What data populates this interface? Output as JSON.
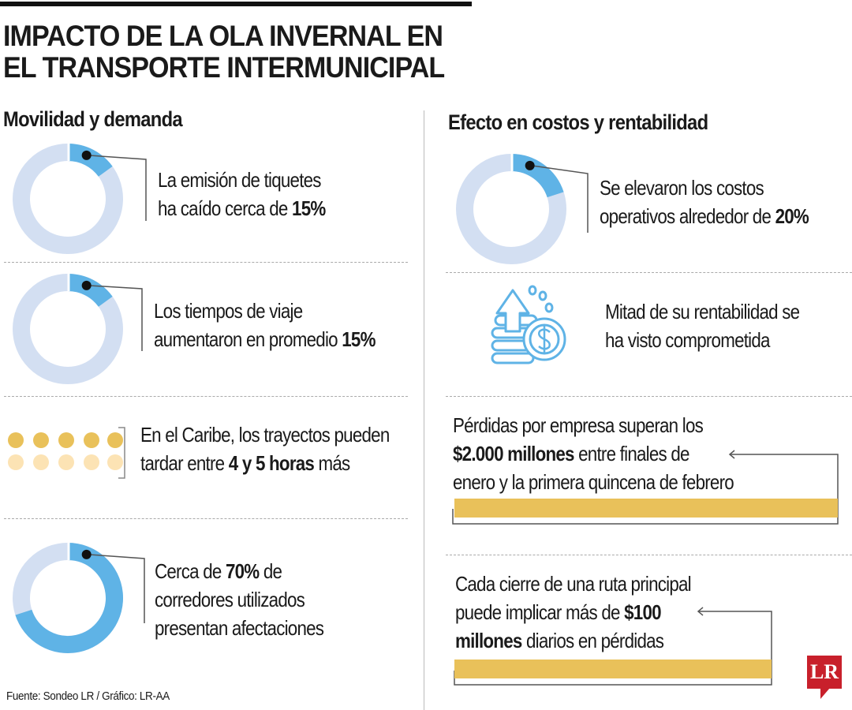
{
  "title_lines": [
    "IMPACTO DE LA OLA INVERNAL EN",
    "EL TRANSPORTE INTERMUNICIPAL"
  ],
  "left": {
    "heading": "Movilidad y demanda",
    "items": [
      {
        "pre": "La emisión de tiquetes",
        "pre2": "ha caído cerca de ",
        "bold": "15%"
      },
      {
        "pre": "Los tiempos de viaje",
        "pre2": "aumentaron en promedio ",
        "bold": "15%"
      },
      {
        "pre": "En el Caribe, los trayectos pueden",
        "pre2": "tardar entre ",
        "bold": "4 y 5 horas",
        "post": " más"
      },
      {
        "pre": "Cerca de ",
        "bold": "70%",
        "post": " de",
        "line2": "corredores utilizados",
        "line3": "presentan afectaciones"
      }
    ]
  },
  "right": {
    "heading": "Efecto en costos y rentabilidad",
    "items": [
      {
        "pre": "Se elevaron los costos",
        "pre2": "operativos alrededor de ",
        "bold": "20%"
      },
      {
        "line1": "Mitad de su rentabilidad se",
        "line2": "ha visto comprometida",
        "icon": "coins-dollar-arrow-up-icon"
      },
      {
        "line1": "Pérdidas por empresa superan los",
        "bold": "$2.000 millones",
        "post": " entre finales de",
        "line3": "enero y la primera quincena de febrero"
      },
      {
        "line1": "Cada cierre de una ruta principal",
        "pre2": "puede implicar más de ",
        "bold": "$100",
        "bold3": "millones",
        "post3": " diarios en pérdidas"
      }
    ]
  },
  "source": "Fuente: Sondeo LR / Gráfico: LR-AA",
  "logo": "LR",
  "colors": {
    "highlight": "#5fb3e6",
    "track": "#d3dff2",
    "gold": "#e9c15a",
    "gold_light": "#fce3b4",
    "logo": "#c8202b"
  },
  "chart_data": {
    "type": "pie",
    "donuts": [
      {
        "value": 15
      },
      {
        "value": 15
      },
      {
        "value": 70
      },
      {
        "value": 20
      }
    ],
    "dot_scale": {
      "filled": 5,
      "light": 5
    }
  }
}
